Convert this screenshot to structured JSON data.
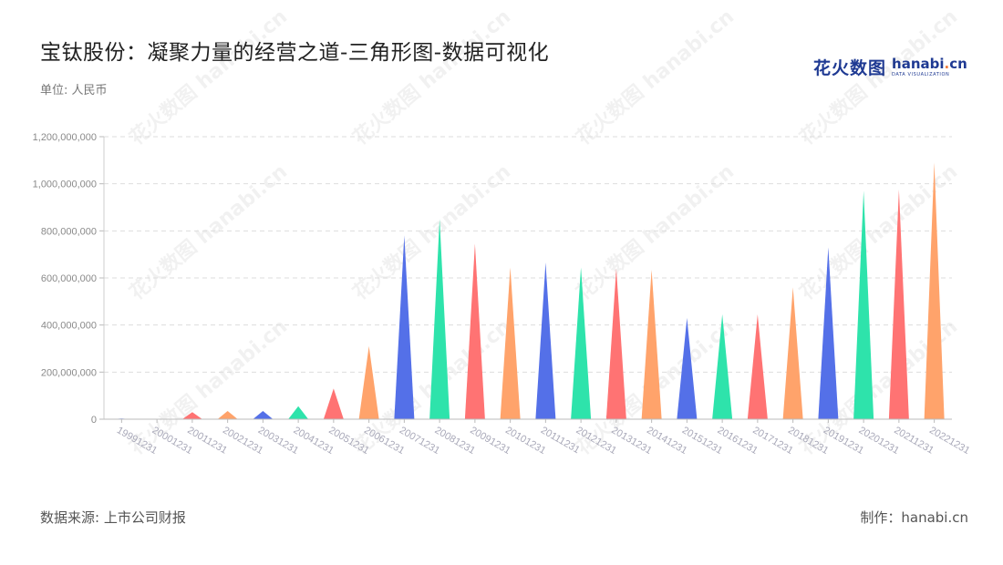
{
  "header": {
    "title": "宝钛股份：凝聚力量的经营之道-三角形图-数据可视化",
    "unit": "单位: 人民币"
  },
  "logo": {
    "cn": "花火数图",
    "en_main": "hanabi",
    "en_dot": ".",
    "en_tail": "cn",
    "sub": "DATA VISUALIZATION"
  },
  "footer": {
    "source": "数据来源: 上市公司财报",
    "author": "制作：hanabi.cn"
  },
  "watermark": {
    "text": "花火数图 hanabi.cn"
  },
  "chart_data": {
    "type": "bar",
    "mark_shape": "triangle",
    "categories": [
      "19991231",
      "20001231",
      "20011231",
      "20021231",
      "20031231",
      "20041231",
      "20051231",
      "20061231",
      "20071231",
      "20081231",
      "20091231",
      "20101231",
      "20111231",
      "20121231",
      "20131231",
      "20141231",
      "20151231",
      "20161231",
      "20171231",
      "20181231",
      "20191231",
      "20201231",
      "20211231",
      "20221231"
    ],
    "values": [
      3000000,
      2000000,
      30000000,
      35000000,
      35000000,
      55000000,
      130000000,
      310000000,
      780000000,
      850000000,
      745000000,
      645000000,
      665000000,
      645000000,
      640000000,
      635000000,
      430000000,
      445000000,
      445000000,
      560000000,
      730000000,
      970000000,
      975000000,
      1090000000
    ],
    "ylim": [
      0,
      1200000000
    ],
    "yticks": [
      "0",
      "200,000,000",
      "400,000,000",
      "600,000,000",
      "800,000,000",
      "1,000,000,000",
      "1,200,000,000"
    ],
    "ytick_values": [
      0,
      200000000,
      400000000,
      600000000,
      800000000,
      1000000000,
      1200000000
    ],
    "grid": true,
    "colors": [
      "#5470e8",
      "#2ee3ab",
      "#ff7373",
      "#ffa36b"
    ]
  }
}
